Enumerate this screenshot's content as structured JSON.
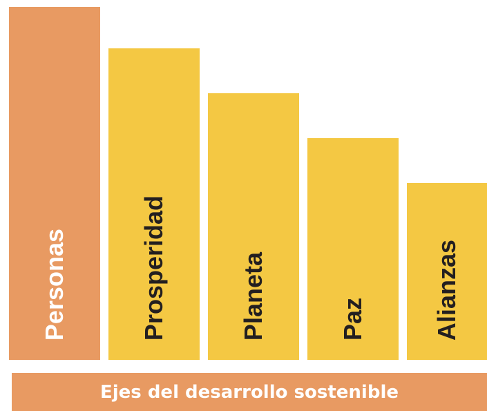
{
  "pillars": [
    {
      "label": "Personas",
      "color": "#e89a62",
      "text_color": "#ffffff"
    },
    {
      "label": "Prosperidad",
      "color": "#f4c843",
      "text_color": "#231f20"
    },
    {
      "label": "Planeta",
      "color": "#f4c843",
      "text_color": "#231f20"
    },
    {
      "label": "Paz",
      "color": "#f4c843",
      "text_color": "#231f20"
    },
    {
      "label": "Alianzas",
      "color": "#f4c843",
      "text_color": "#231f20"
    }
  ],
  "base": {
    "label": "Ejes del desarrollo sostenible",
    "color": "#e89a62"
  }
}
